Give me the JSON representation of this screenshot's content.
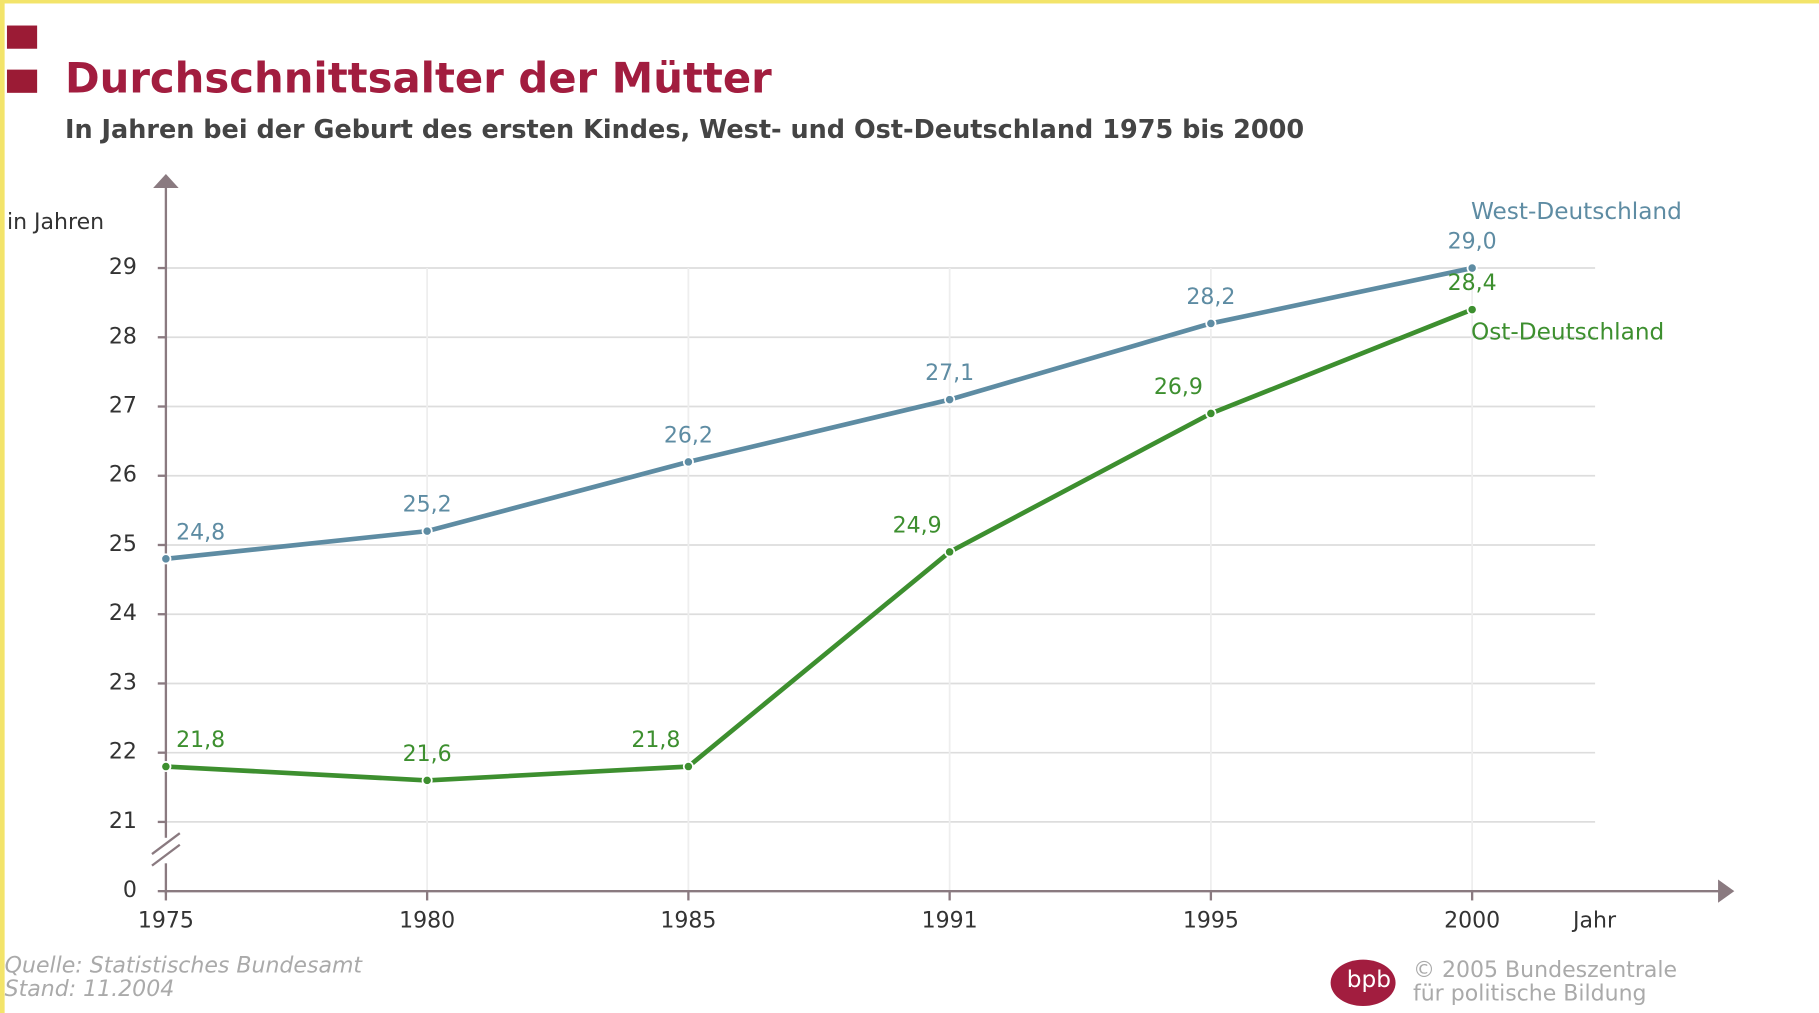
{
  "chart_data": {
    "type": "line",
    "title": "Durchschnittsalter der Mütter",
    "subtitle": "In Jahren bei der Geburt des ersten Kindes, West- und Ost-Deutschland 1975 bis 2000",
    "y_label": "in Jahren",
    "x_label": "Jahr",
    "categories": [
      "1975",
      "1980",
      "1985",
      "1991",
      "1995",
      "2000"
    ],
    "series": [
      {
        "name": "West-Deutschland",
        "color": "#5e8ca3",
        "values": [
          24.8,
          25.2,
          26.2,
          27.1,
          28.2,
          29.0
        ],
        "value_labels": [
          "24,8",
          "25,2",
          "26,2",
          "27,1",
          "28,2",
          "29,0"
        ]
      },
      {
        "name": "Ost-Deutschland",
        "color": "#3d8f2f",
        "values": [
          21.8,
          21.6,
          21.8,
          24.9,
          26.9,
          28.4
        ],
        "value_labels": [
          "21,8",
          "21,6",
          "21,8",
          "24,9",
          "26,9",
          "28,4"
        ]
      }
    ],
    "ylim": [
      0,
      29
    ],
    "axis_break": [
      0,
      21
    ],
    "yticks": [
      0,
      21,
      22,
      23,
      24,
      25,
      26,
      27,
      28,
      29
    ],
    "grid": true,
    "source": "Quelle: Statistisches Bundesamt",
    "date": "Stand: 11.2004",
    "logo": "bpb",
    "copyright": "© 2005 Bundeszentrale",
    "publisher": "für politische Bildung"
  }
}
